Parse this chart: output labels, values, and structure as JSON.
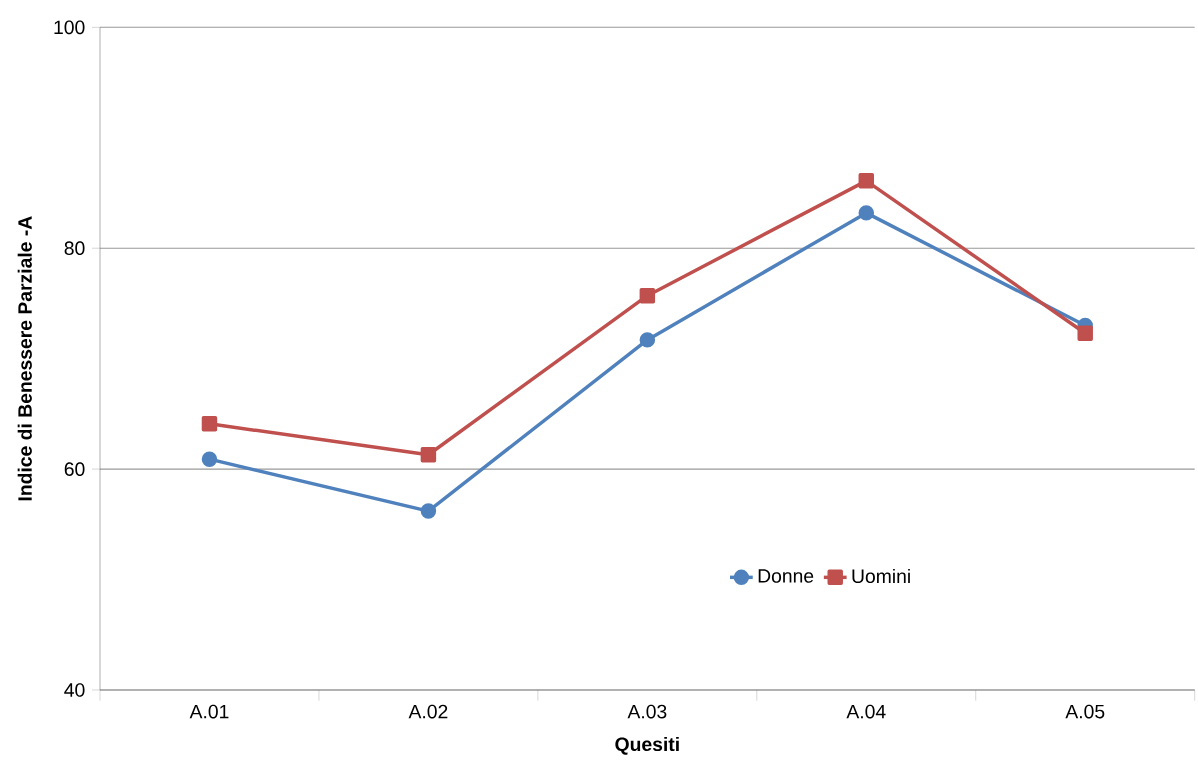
{
  "chart_data": {
    "type": "line",
    "xlabel": "Quesiti",
    "ylabel": "Indice di Benessere Parziale -A",
    "categories": [
      "A.01",
      "A.02",
      "A.03",
      "A.04",
      "A.05"
    ],
    "series": [
      {
        "name": "Donne",
        "color": "#4f81bd",
        "marker": "circle",
        "values": [
          60.9,
          56.2,
          71.7,
          83.2,
          73.0
        ]
      },
      {
        "name": "Uomini",
        "color": "#c0504d",
        "marker": "square",
        "values": [
          64.1,
          61.3,
          75.7,
          86.1,
          72.3
        ]
      }
    ],
    "ylim": [
      40,
      100
    ],
    "yticks": [
      40,
      60,
      80,
      100
    ],
    "grid": "y",
    "legend": "bottom right",
    "line_style": "solid"
  }
}
